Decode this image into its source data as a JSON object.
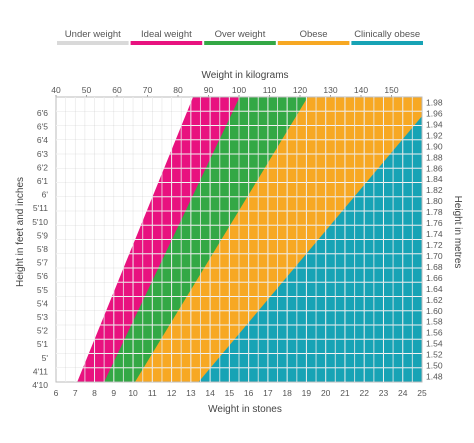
{
  "chart_data": {
    "type": "area",
    "legend": {
      "placement": "top",
      "items": [
        {
          "label": "Under weight",
          "color": "#d9d9d9",
          "text_color": "#555555"
        },
        {
          "label": "Ideal weight",
          "color": "#e8127f",
          "text_color": "#e8127f"
        },
        {
          "label": "Over weight",
          "color": "#33a845",
          "text_color": "#555555"
        },
        {
          "label": "Obese",
          "color": "#f7a823",
          "text_color": "#555555"
        },
        {
          "label": "Clinically obese",
          "color": "#17a3b5",
          "text_color": "#555555"
        }
      ]
    },
    "top_axis": {
      "label": "Weight in kilograms",
      "ticks": [
        "40",
        "50",
        "60",
        "70",
        "80",
        "90",
        "100",
        "110",
        "120",
        "130",
        "140",
        "150"
      ],
      "range_kg": [
        40,
        160
      ]
    },
    "bottom_axis": {
      "label": "Weight in stones",
      "ticks": [
        "6",
        "7",
        "8",
        "9",
        "10",
        "11",
        "12",
        "13",
        "14",
        "15",
        "16",
        "17",
        "18",
        "19",
        "20",
        "21",
        "22",
        "23",
        "24",
        "25"
      ],
      "range_st": [
        6,
        25
      ]
    },
    "left_axis": {
      "label": "Height in feet and inches",
      "ticks": [
        "6'6",
        "6'5",
        "6'4",
        "6'3",
        "6'2",
        "6'1",
        "6'",
        "5'11",
        "5'10",
        "5'9",
        "5'8",
        "5'7",
        "5'6",
        "5'5",
        "5'4",
        "5'3",
        "5'2",
        "5'1",
        "5'",
        "4'11",
        "4'10"
      ]
    },
    "right_axis": {
      "label": "Height in metres",
      "ticks": [
        "1.98",
        "1.96",
        "1.94",
        "1.92",
        "1.90",
        "1.88",
        "1.86",
        "1.84",
        "1.82",
        "1.80",
        "1.78",
        "1.76",
        "1.74",
        "1.72",
        "1.70",
        "1.68",
        "1.66",
        "1.64",
        "1.62",
        "1.60",
        "1.58",
        "1.56",
        "1.54",
        "1.52",
        "1.50",
        "1.48"
      ],
      "range_m": [
        1.47,
        1.99
      ]
    },
    "bands": [
      {
        "name": "Under weight",
        "color": "#ffffff"
      },
      {
        "name": "Ideal weight",
        "color": "#e8127f"
      },
      {
        "name": "Over weight",
        "color": "#33a845"
      },
      {
        "name": "Obese",
        "color": "#f7a823"
      },
      {
        "name": "Clinically obese",
        "color": "#17a3b5"
      }
    ],
    "boundaries": [
      {
        "between": "Under weight / Ideal weight",
        "points": [
          {
            "st": 7.1,
            "m": 1.47
          },
          {
            "st": 13.0,
            "m": 1.98
          }
        ]
      },
      {
        "between": "Ideal weight / Over weight",
        "points": [
          {
            "st": 8.5,
            "m": 1.47
          },
          {
            "st": 15.4,
            "m": 1.98
          }
        ]
      },
      {
        "between": "Over weight / Obese",
        "points": [
          {
            "st": 10.1,
            "m": 1.47
          },
          {
            "st": 18.9,
            "m": 1.98
          }
        ]
      },
      {
        "between": "Obese / Clinically obese",
        "points": [
          {
            "st": 13.4,
            "m": 1.47
          },
          {
            "st": 25.0,
            "m": 1.955
          }
        ]
      }
    ],
    "grid": true
  }
}
